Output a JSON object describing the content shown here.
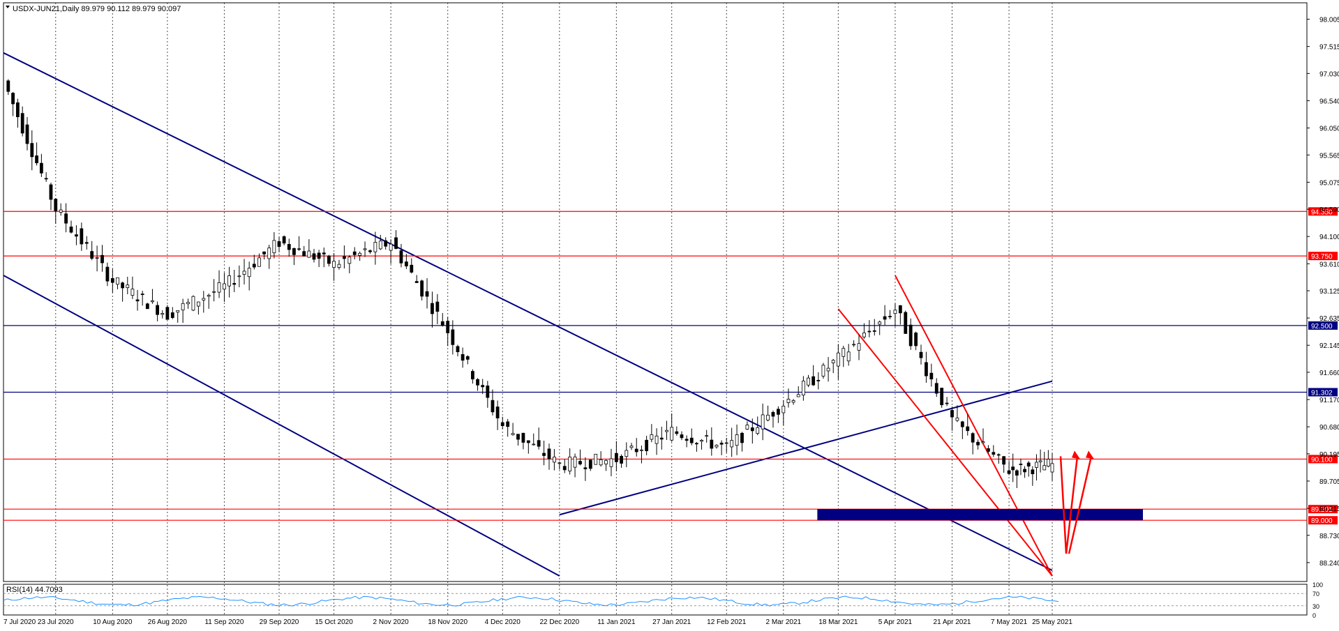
{
  "window": {
    "symbol_header": "USDX-JUN21,Daily  89.979 90.112 89.979 90.097"
  },
  "colors": {
    "background": "#ffffff",
    "grid": "#000000",
    "candle_up_body": "#ffffff",
    "candle_down_body": "#000000",
    "candle_outline": "#000000",
    "trend_blue": "#000080",
    "level_red": "#ff0000",
    "level_navy": "#000080",
    "zone_fill": "#000080",
    "rsi_line": "#1e90ff"
  },
  "chart_data": [
    {
      "type": "candlestick",
      "title": "USDX-JUN21,Daily",
      "ohlc_readout": {
        "open": 89.979,
        "high": 90.112,
        "low": 89.979,
        "close": 90.097
      },
      "ylim": [
        87.9,
        98.3
      ],
      "y_ticks": [
        98.005,
        97.515,
        97.03,
        96.54,
        96.05,
        95.565,
        95.075,
        94.59,
        94.1,
        93.61,
        93.125,
        92.635,
        92.145,
        91.66,
        91.17,
        90.68,
        90.195,
        89.705,
        89.215,
        88.73,
        88.24
      ],
      "x_date_labels": [
        "7 Jul 2020",
        "23 Jul 2020",
        "10 Aug 2020",
        "26 Aug 2020",
        "11 Sep 2020",
        "29 Sep 2020",
        "15 Oct 2020",
        "2 Nov 2020",
        "18 Nov 2020",
        "4 Dec 2020",
        "22 Dec 2020",
        "11 Jan 2021",
        "27 Jan 2021",
        "12 Feb 2021",
        "2 Mar 2021",
        "18 Mar 2021",
        "5 Apr 2021",
        "21 Apr 2021",
        "7 May 2021",
        "25 May 2021"
      ],
      "key_points": [
        {
          "date": "7 Jul 2020",
          "close": 96.9
        },
        {
          "date": "23 Jul 2020",
          "close": 94.6
        },
        {
          "date": "10 Aug 2020",
          "close": 93.3
        },
        {
          "date": "26 Aug 2020",
          "close": 92.7
        },
        {
          "date": "11 Sep 2020",
          "close": 93.2
        },
        {
          "date": "29 Sep 2020",
          "close": 94.0
        },
        {
          "date": "15 Oct 2020",
          "close": 93.6
        },
        {
          "date": "2 Nov 2020",
          "close": 94.0
        },
        {
          "date": "18 Nov 2020",
          "close": 92.4
        },
        {
          "date": "4 Dec 2020",
          "close": 90.7
        },
        {
          "date": "22 Dec 2020",
          "close": 90.0
        },
        {
          "date": "11 Jan 2021",
          "close": 90.1
        },
        {
          "date": "27 Jan 2021",
          "close": 90.6
        },
        {
          "date": "12 Feb 2021",
          "close": 90.3
        },
        {
          "date": "2 Mar 2021",
          "close": 91.1
        },
        {
          "date": "18 Mar 2021",
          "close": 91.9
        },
        {
          "date": "5 Apr 2021",
          "close": 92.8
        },
        {
          "date": "21 Apr 2021",
          "close": 90.8
        },
        {
          "date": "7 May 2021",
          "close": 89.9
        },
        {
          "date": "25 May 2021",
          "close": 90.0
        }
      ],
      "horizontal_levels": [
        {
          "value": 94.55,
          "label": "94.550",
          "color": "#ff0000"
        },
        {
          "value": 93.75,
          "label": "93.750",
          "color": "#ff0000"
        },
        {
          "value": 92.5,
          "label": "92.500",
          "color": "#000080"
        },
        {
          "value": 91.302,
          "label": "91.302",
          "color": "#000080"
        },
        {
          "value": 90.1,
          "label": "90.100",
          "color": "#ff0000"
        },
        {
          "value": 89.201,
          "label": "89.201",
          "color": "#ff0000"
        },
        {
          "value": 89.0,
          "label": "89.000",
          "color": "#ff0000"
        }
      ],
      "trendlines": [
        {
          "name": "",
          "color": "#000080",
          "from": {
            "date": "7 Jul 2020",
            "value": 97.4
          },
          "to": {
            "date": "25 May 2021",
            "value": 88.1
          }
        },
        {
          "name": "",
          "color": "#000080",
          "from": {
            "date": "7 Jul 2020",
            "value": 93.4
          },
          "to": {
            "date": "22 Dec 2020",
            "value": 88.0
          }
        },
        {
          "name": "",
          "color": "#000080",
          "from": {
            "date": "22 Dec 2020",
            "value": 89.1
          },
          "to": {
            "date": "25 May 2021",
            "value": 91.5
          }
        },
        {
          "name": "",
          "color": "#ff0000",
          "from": {
            "date": "5 Apr 2021",
            "value": 93.4
          },
          "to": {
            "date": "25 May 2021",
            "value": 88.0
          }
        },
        {
          "name": "",
          "color": "#ff0000",
          "from": {
            "date": "18 Mar 2021",
            "value": 92.8
          },
          "to": {
            "date": "25 May 2021",
            "value": 88.0
          }
        }
      ],
      "zone": {
        "from_value": 89.0,
        "to_value": 89.201,
        "color": "#000080"
      },
      "arrows": [
        {
          "color": "#ff0000",
          "direction": "down-then-up"
        }
      ]
    },
    {
      "type": "line",
      "title": "RSI(14) 44.7093",
      "ylim": [
        0,
        100
      ],
      "y_ticks": [
        100,
        70,
        30,
        0
      ],
      "levels": [
        70,
        30
      ],
      "last_value": 44.7093
    }
  ]
}
